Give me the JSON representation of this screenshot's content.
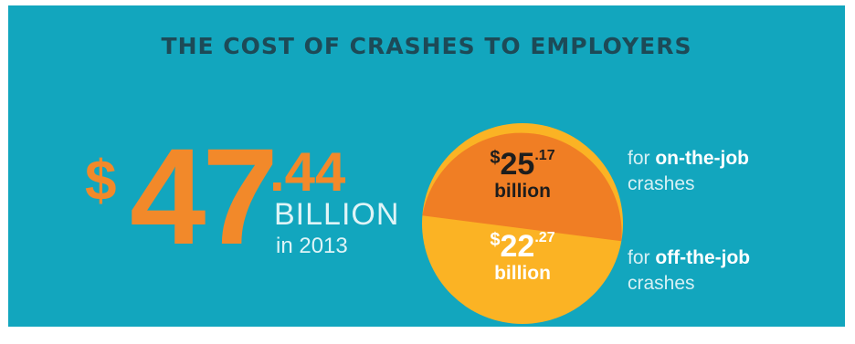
{
  "title": "THE COST OF CRASHES TO EMPLOYERS",
  "total": {
    "currency": "$",
    "whole": "47",
    "cents": ".44",
    "unit": "BILLION",
    "period": "in 2013"
  },
  "segments": [
    {
      "currency": "$",
      "whole": "25",
      "cents": ".17",
      "unit": "billion",
      "value": 25.17,
      "color": "#f07e24",
      "caption_prefix": "for ",
      "caption_bold": "on-the-job",
      "caption_suffix": "crashes"
    },
    {
      "currency": "$",
      "whole": "22",
      "cents": ".27",
      "unit": "billion",
      "value": 22.27,
      "color": "#fbb324",
      "caption_prefix": "for ",
      "caption_bold": "off-the-job",
      "caption_suffix": "crashes"
    }
  ],
  "colors": {
    "background": "#12a6be",
    "title": "#1d4a57",
    "accent": "#f2892a",
    "light_text": "#dff4f7"
  }
}
